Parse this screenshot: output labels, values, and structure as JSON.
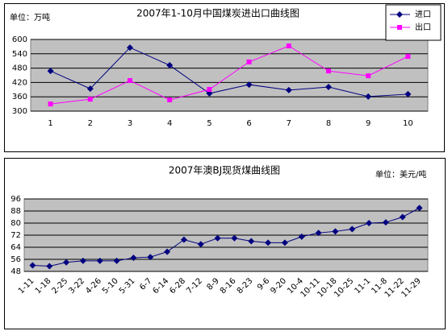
{
  "chart_data": [
    {
      "type": "line",
      "title": "2007年1-10月中国煤炭进出口曲线图",
      "unit_label": "单位：万吨",
      "categories": [
        "1",
        "2",
        "3",
        "4",
        "5",
        "6",
        "7",
        "8",
        "9",
        "10"
      ],
      "series": [
        {
          "name": "进口",
          "color": "#000080",
          "marker": "diamond",
          "values": [
            468,
            394,
            566,
            492,
            374,
            411,
            388,
            401,
            361,
            371
          ]
        },
        {
          "name": "出口",
          "color": "#ff00ff",
          "marker": "square",
          "values": [
            330,
            350,
            428,
            347,
            391,
            506,
            573,
            468,
            448,
            529
          ]
        }
      ],
      "ylim": [
        300,
        600
      ],
      "yticks": [
        300,
        360,
        420,
        480,
        540,
        600
      ],
      "grid": true,
      "legend": "top-right"
    },
    {
      "type": "line",
      "title": "2007年澳BJ现货煤曲线图",
      "unit_label": "单位：美元/吨",
      "categories": [
        "1-11",
        "1-18",
        "2-25",
        "3-22",
        "4-26",
        "5-10",
        "5-31",
        "6-7",
        "6-14",
        "6-28",
        "7-12",
        "8-9",
        "8-16",
        "8-23",
        "9-6",
        "9-20",
        "10-4",
        "10-11",
        "10-18",
        "10-25",
        "11-1",
        "11-8",
        "11-22",
        "11-29"
      ],
      "series": [
        {
          "color": "#000080",
          "marker": "diamond",
          "values": [
            52,
            51.5,
            54,
            55,
            55,
            55,
            57,
            57.5,
            61,
            69,
            66,
            70,
            70,
            68,
            67,
            67,
            71,
            73.5,
            74.5,
            76,
            80,
            80.5,
            84,
            90
          ]
        }
      ],
      "ylim": [
        48,
        96
      ],
      "yticks": [
        48,
        56,
        64,
        72,
        80,
        88,
        96
      ],
      "grid": true
    }
  ]
}
